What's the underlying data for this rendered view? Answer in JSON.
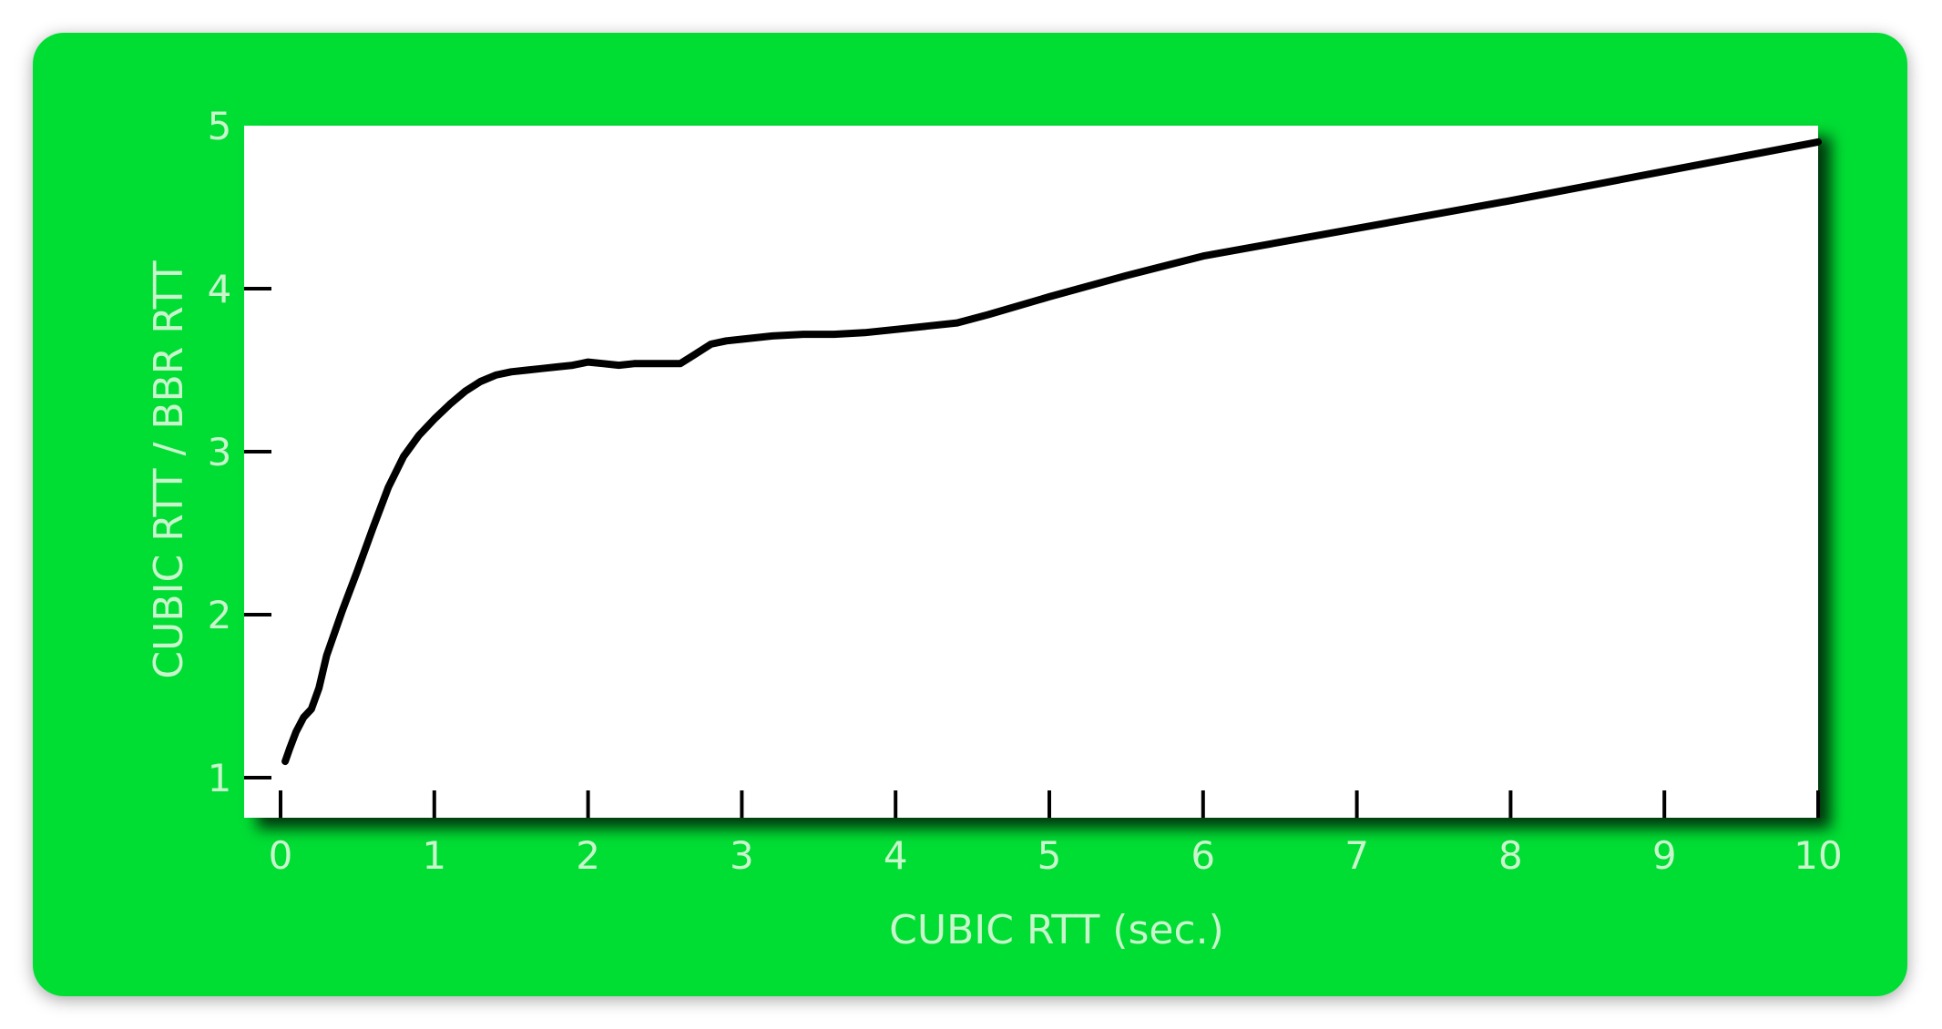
{
  "colors": {
    "background": "#00dd33",
    "plot_area": "#ffffff",
    "label_text": "#c8f5cc",
    "line": "#000000",
    "axis": "#000000"
  },
  "chart_data": {
    "type": "line",
    "title": "",
    "xlabel": "CUBIC RTT (sec.)",
    "ylabel": "CUBIC RTT / BBR RTT",
    "xlim": [
      0,
      10
    ],
    "ylim": [
      1,
      5
    ],
    "xticks": [
      0,
      1,
      2,
      3,
      4,
      5,
      6,
      7,
      8,
      9,
      10
    ],
    "xtick_labels": [
      "0",
      "1",
      "2",
      "3",
      "4",
      "5",
      "6",
      "7",
      "8",
      "9",
      "10"
    ],
    "yticks": [
      1,
      2,
      3,
      4,
      5
    ],
    "ytick_labels": [
      "1",
      "2",
      "3",
      "4",
      "5"
    ],
    "grid": false,
    "series": [
      {
        "x": [
          0.03,
          0.06,
          0.1,
          0.15,
          0.2,
          0.25,
          0.3,
          0.4,
          0.5,
          0.6,
          0.7,
          0.8,
          0.9,
          1.0,
          1.1,
          1.2,
          1.3,
          1.4,
          1.5,
          1.6,
          1.7,
          1.8,
          1.9,
          2.0,
          2.1,
          2.2,
          2.3,
          2.4,
          2.5,
          2.6,
          2.7,
          2.8,
          2.9,
          3.0,
          3.2,
          3.4,
          3.6,
          3.8,
          4.0,
          4.2,
          4.4,
          4.6,
          5.0,
          5.5,
          6.0,
          7.0,
          8.0,
          9.0,
          10.0
        ],
        "y": [
          1.1,
          1.18,
          1.28,
          1.37,
          1.42,
          1.55,
          1.75,
          2.02,
          2.27,
          2.53,
          2.78,
          2.97,
          3.1,
          3.2,
          3.29,
          3.37,
          3.43,
          3.47,
          3.49,
          3.5,
          3.51,
          3.52,
          3.53,
          3.55,
          3.54,
          3.53,
          3.54,
          3.54,
          3.54,
          3.54,
          3.6,
          3.66,
          3.68,
          3.69,
          3.71,
          3.72,
          3.72,
          3.73,
          3.75,
          3.77,
          3.79,
          3.84,
          3.95,
          4.08,
          4.2,
          4.37,
          4.54,
          4.72,
          4.9
        ]
      }
    ]
  }
}
